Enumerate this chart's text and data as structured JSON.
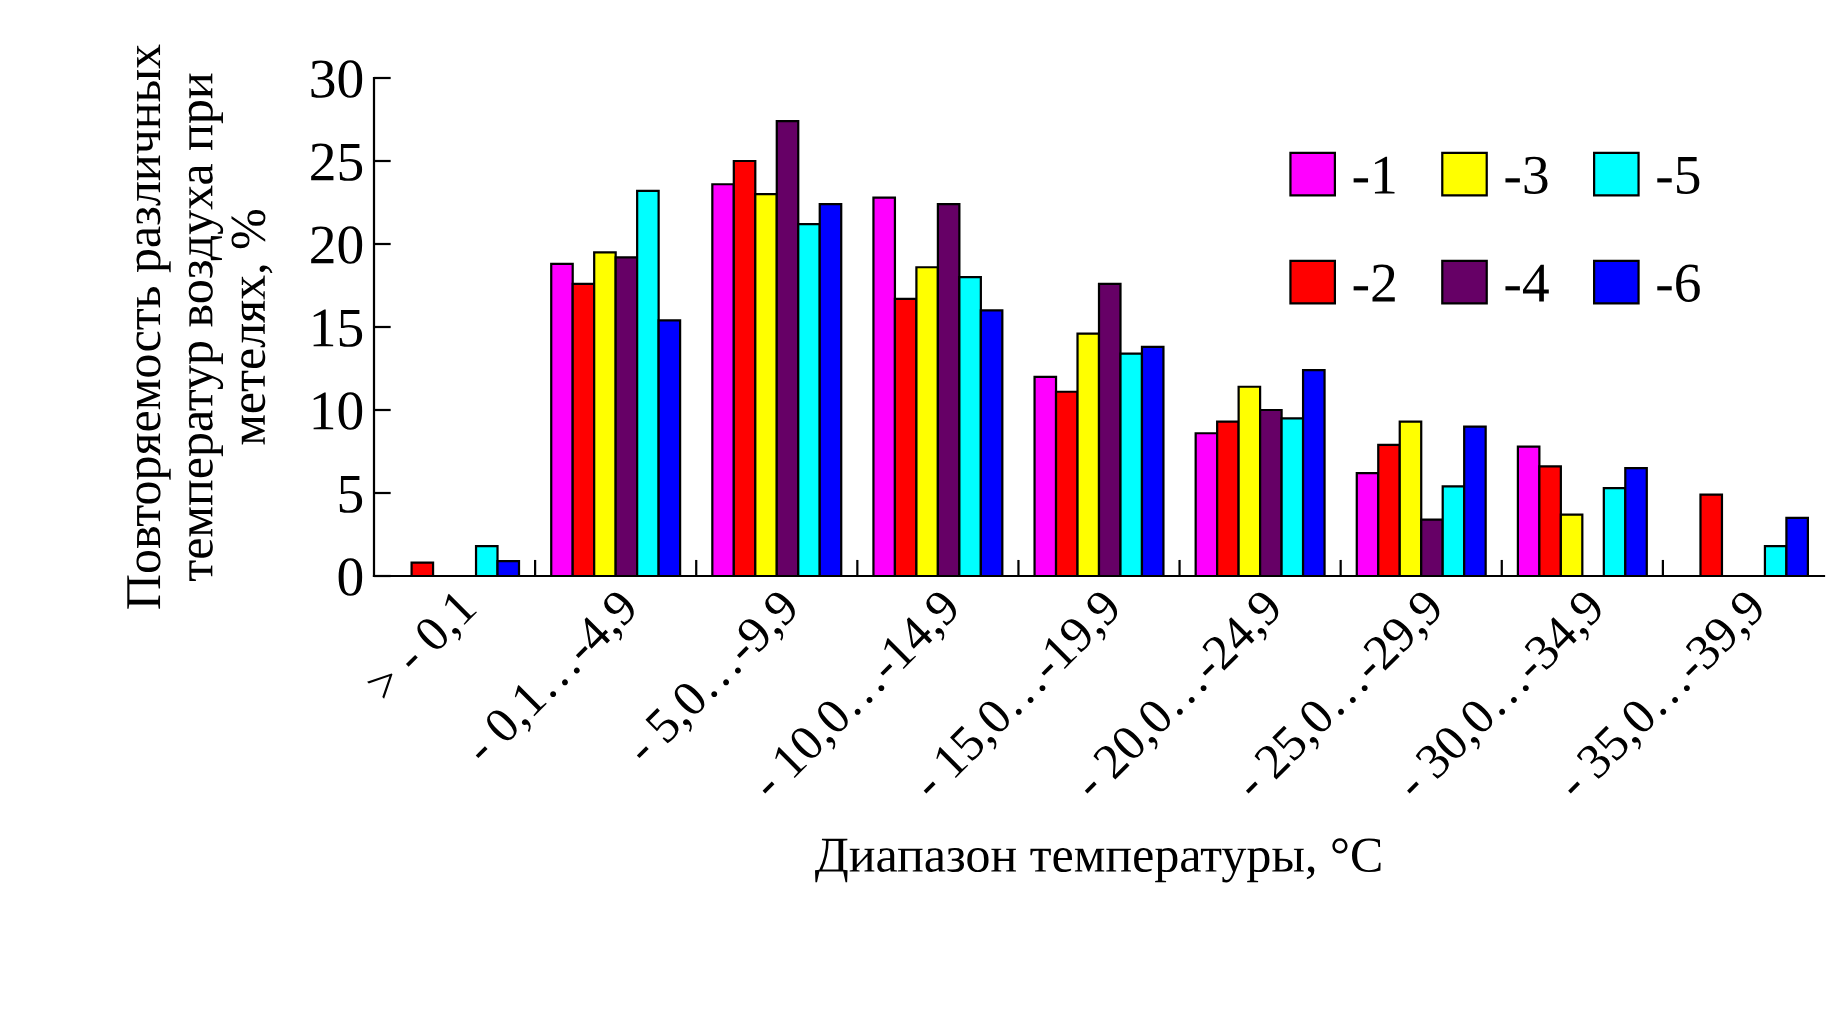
{
  "chart_data": {
    "type": "bar",
    "xlabel": "Диапазон температуры, °C",
    "ylabel": "Повторяемость различных температур воздуха при метелях, %",
    "categories": [
      "> - 0,1",
      "- 0,1…-4,9",
      "- 5,0…-9,9",
      "- 10,0…-14,9",
      "- 15,0…-19,9",
      "- 20,0…-24,9",
      "- 25,0…-29,9",
      "- 30,0…-34,9",
      "- 35,0…-39,9"
    ],
    "ylim": [
      0,
      30
    ],
    "yticks": [
      0,
      5,
      10,
      15,
      20,
      25,
      30
    ],
    "grid": false,
    "legend": "top right",
    "series": [
      {
        "name": "-1",
        "color": "#ff00ff",
        "values": [
          null,
          18.8,
          23.6,
          22.8,
          12.0,
          8.6,
          6.2,
          7.8,
          null
        ]
      },
      {
        "name": "-2",
        "color": "#ff0000",
        "values": [
          0.8,
          17.6,
          25.0,
          16.7,
          11.1,
          9.3,
          7.9,
          6.6,
          4.9
        ]
      },
      {
        "name": "-3",
        "color": "#ffff00",
        "values": [
          null,
          19.5,
          23.0,
          18.6,
          14.6,
          11.4,
          9.3,
          3.7,
          null
        ]
      },
      {
        "name": "-4",
        "color": "#660066",
        "values": [
          null,
          19.2,
          27.4,
          22.4,
          17.6,
          10.0,
          3.4,
          null,
          null
        ]
      },
      {
        "name": "-5",
        "color": "#00ffff",
        "values": [
          1.8,
          23.2,
          21.2,
          18.0,
          13.4,
          9.5,
          5.4,
          5.3,
          1.8
        ]
      },
      {
        "name": "-6",
        "color": "#0000ff",
        "values": [
          0.9,
          15.4,
          22.4,
          16.0,
          13.8,
          12.4,
          9.0,
          6.5,
          3.5
        ]
      }
    ]
  }
}
